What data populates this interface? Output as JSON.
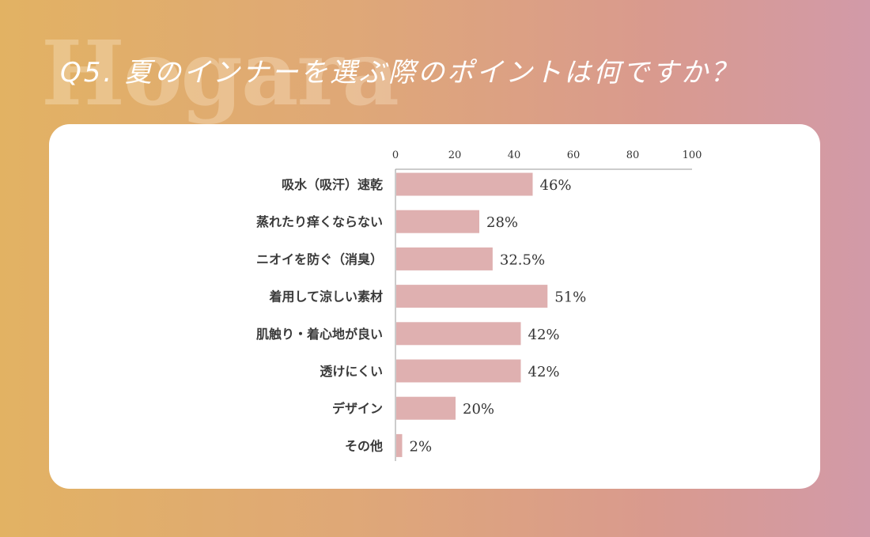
{
  "watermark": "Hogara",
  "title": "Q5. 夏のインナーを選ぶ際のポイントは何ですか？",
  "chart_data": {
    "type": "bar",
    "orientation": "horizontal",
    "categories": [
      "吸水（吸汗）速乾",
      "蒸れたり痒くならない",
      "ニオイを防ぐ（消臭）",
      "着用して涼しい素材",
      "肌触り・着心地が良い",
      "透けにくい",
      "デザイン",
      "その他"
    ],
    "values": [
      46,
      28,
      32.5,
      51,
      42,
      42,
      20,
      2
    ],
    "value_labels": [
      "46%",
      "28%",
      "32.5%",
      "51%",
      "42%",
      "42%",
      "20%",
      "2%"
    ],
    "xticks": [
      "0",
      "20",
      "40",
      "60",
      "80",
      "100"
    ],
    "xlim": [
      0,
      100
    ],
    "tick_position": "top",
    "bar_color": "#dfb0b0",
    "grid": false
  }
}
